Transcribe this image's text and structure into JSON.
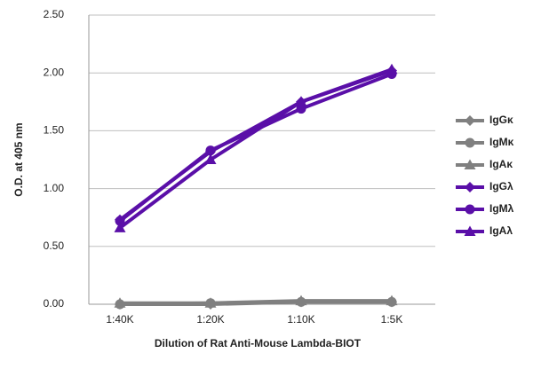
{
  "chart_data": {
    "type": "line",
    "ylabel": "O.D. at 405 nm",
    "xlabel": "Dilution of Rat Anti-Mouse Lambda-BIOT",
    "categories": [
      "1:40K",
      "1:20K",
      "1:10K",
      "1:5K"
    ],
    "ylim": [
      0,
      2.5
    ],
    "yticks": [
      {
        "value": 0,
        "label": "0.00"
      },
      {
        "value": 0.5,
        "label": "0.50"
      },
      {
        "value": 1,
        "label": "1.00"
      },
      {
        "value": 1.5,
        "label": "1.50"
      },
      {
        "value": 2,
        "label": "2.00"
      },
      {
        "value": 2.5,
        "label": "2.50"
      }
    ],
    "grid": true,
    "legend": "right",
    "series": [
      {
        "name": "IgGκ",
        "color": "#808080",
        "marker": "diamond",
        "values": [
          0.0,
          0.0,
          0.02,
          0.02
        ]
      },
      {
        "name": "IgMκ",
        "color": "#808080",
        "marker": "circle",
        "values": [
          0.0,
          0.01,
          0.02,
          0.02
        ]
      },
      {
        "name": "IgAκ",
        "color": "#808080",
        "marker": "triangle",
        "values": [
          0.01,
          0.01,
          0.03,
          0.03
        ]
      },
      {
        "name": "IgGλ",
        "color": "#5a0fa8",
        "marker": "diamond",
        "values": [
          0.73,
          1.32,
          1.75,
          2.02
        ]
      },
      {
        "name": "IgMλ",
        "color": "#5a0fa8",
        "marker": "circle",
        "values": [
          0.72,
          1.33,
          1.69,
          1.99
        ]
      },
      {
        "name": "IgAλ",
        "color": "#5a0fa8",
        "marker": "triangle",
        "values": [
          0.66,
          1.25,
          1.75,
          2.03
        ]
      }
    ]
  }
}
